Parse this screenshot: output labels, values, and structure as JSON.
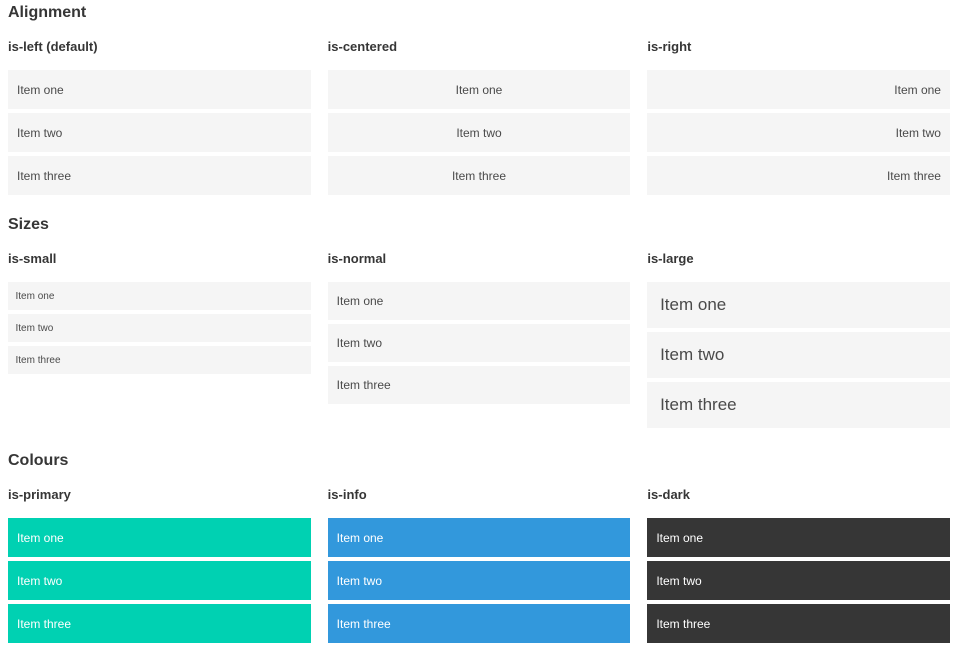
{
  "colors": {
    "item_default_bg": "#f5f5f5",
    "item_default_text": "#4a4a4a",
    "heading_text": "#363636",
    "primary": "#00d1b2",
    "info": "#3298dc",
    "dark": "#363636",
    "colored_text": "#ffffff"
  },
  "items": [
    "Item one",
    "Item two",
    "Item three"
  ],
  "sections": [
    {
      "title": "Alignment",
      "columns": [
        {
          "label": "is-left (default)"
        },
        {
          "label": "is-centered"
        },
        {
          "label": "is-right"
        }
      ]
    },
    {
      "title": "Sizes",
      "columns": [
        {
          "label": "is-small"
        },
        {
          "label": "is-normal"
        },
        {
          "label": "is-large"
        }
      ]
    },
    {
      "title": "Colours",
      "columns": [
        {
          "label": "is-primary"
        },
        {
          "label": "is-info"
        },
        {
          "label": "is-dark"
        }
      ]
    }
  ]
}
